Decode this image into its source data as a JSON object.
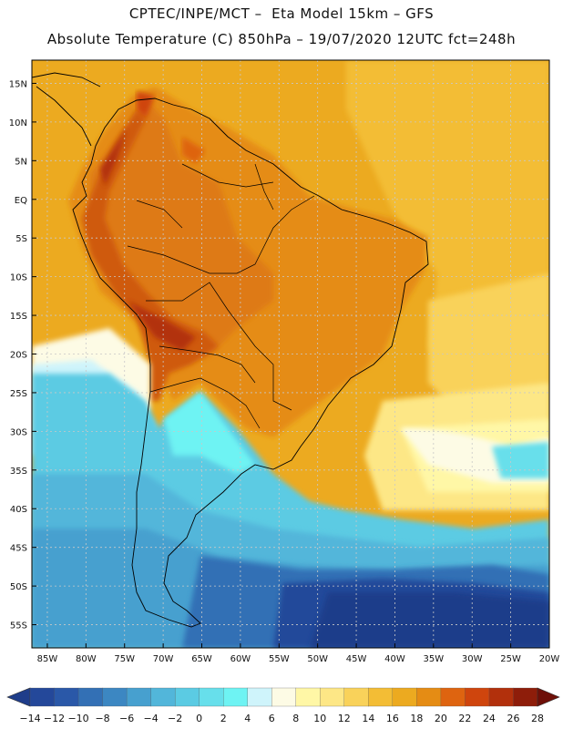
{
  "header": {
    "line1": "CPTEC/INPE/MCT –  Eta Model 15km – GFS",
    "line2": "Absolute Temperature (C) 850hPa – 19/07/2020 12UTC fct=248h"
  },
  "map": {
    "lat_labels": [
      "15N",
      "10N",
      "5N",
      "EQ",
      "5S",
      "10S",
      "15S",
      "20S",
      "25S",
      "30S",
      "35S",
      "40S",
      "45S",
      "50S",
      "55S"
    ],
    "lon_labels": [
      "85W",
      "80W",
      "75W",
      "70W",
      "65W",
      "60W",
      "55W",
      "50W",
      "45W",
      "40W",
      "35W",
      "30W",
      "25W",
      "20W"
    ],
    "lat_range": [
      18,
      -58
    ],
    "lon_range": [
      -87,
      -20
    ],
    "colors": {
      "ocean_warm": "#e9ac27",
      "land_hot": "#ec9a1b",
      "andes_hot": "#cf5a10",
      "border": "#000000",
      "grid": "#c8c8c8"
    }
  },
  "colorbar": {
    "labels": [
      "-14",
      "-12",
      "-10",
      "-8",
      "-6",
      "-4",
      "-2",
      "0",
      "2",
      "4",
      "6",
      "8",
      "10",
      "12",
      "14",
      "16",
      "18",
      "20",
      "22",
      "24",
      "26",
      "28"
    ],
    "colors": [
      "#1f3d8a",
      "#24489a",
      "#2a58a8",
      "#3370b5",
      "#3c87c2",
      "#47a0cf",
      "#52b6da",
      "#5bcbe3",
      "#67dfeb",
      "#6ef3f3",
      "#cff4fb",
      "#fdfbe5",
      "#fff7a6",
      "#fde786",
      "#f9d25a",
      "#f3bd35",
      "#ecaa20",
      "#e58c14",
      "#de6410",
      "#cf450d",
      "#b2300c",
      "#8e1d0a",
      "#6e0f08"
    ]
  }
}
